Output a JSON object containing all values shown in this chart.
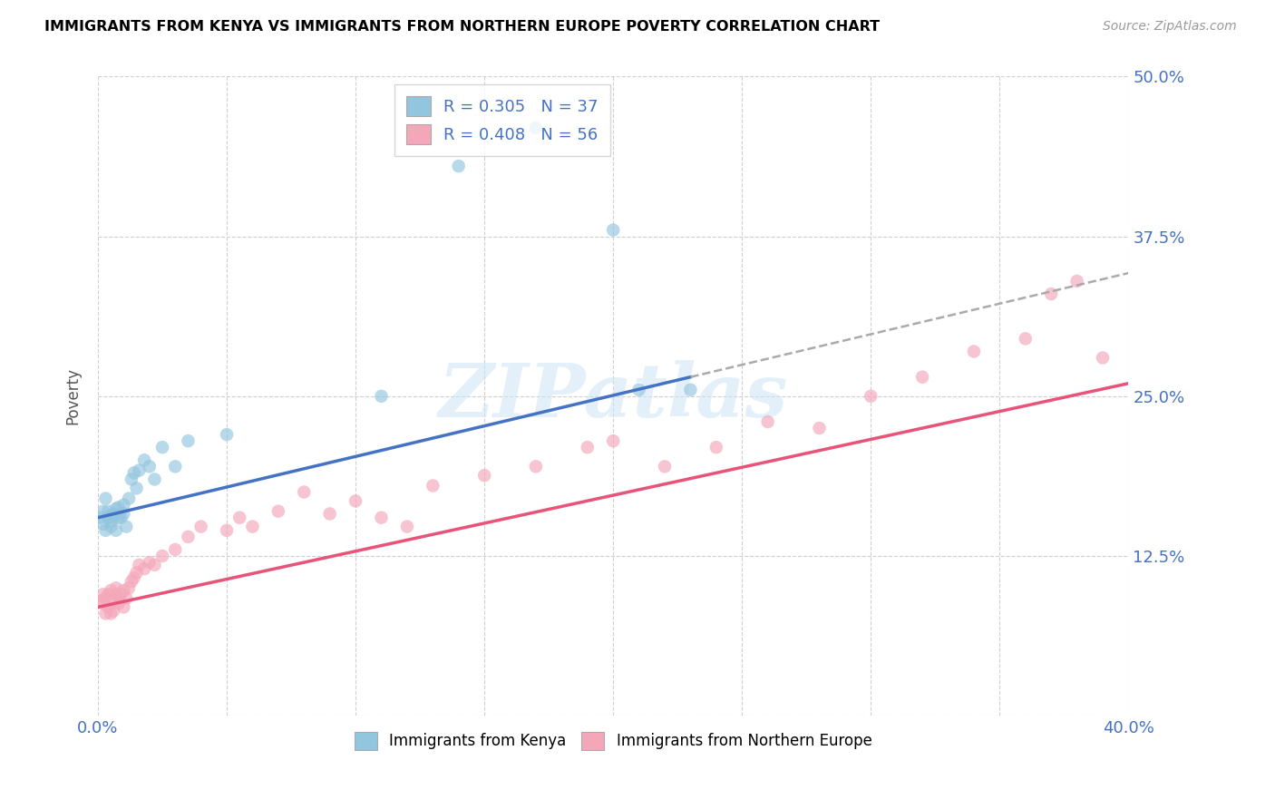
{
  "title": "IMMIGRANTS FROM KENYA VS IMMIGRANTS FROM NORTHERN EUROPE POVERTY CORRELATION CHART",
  "source": "Source: ZipAtlas.com",
  "ylabel": "Poverty",
  "xlim": [
    0.0,
    0.4
  ],
  "ylim": [
    0.0,
    0.5
  ],
  "xtick_positions": [
    0.0,
    0.05,
    0.1,
    0.15,
    0.2,
    0.25,
    0.3,
    0.35,
    0.4
  ],
  "xticklabels": [
    "0.0%",
    "",
    "",
    "",
    "",
    "",
    "",
    "",
    "40.0%"
  ],
  "ytick_positions": [
    0.0,
    0.125,
    0.25,
    0.375,
    0.5
  ],
  "yticklabels": [
    "",
    "12.5%",
    "25.0%",
    "37.5%",
    "50.0%"
  ],
  "watermark": "ZIPatlas",
  "legend_r1": "0.305",
  "legend_n1": "37",
  "legend_r2": "0.408",
  "legend_n2": "56",
  "legend_label1": "Immigrants from Kenya",
  "legend_label2": "Immigrants from Northern Europe",
  "color_kenya": "#92c5de",
  "color_northern": "#f4a7b9",
  "color_trend_kenya": "#4472C4",
  "color_trend_northern": "#e8537a",
  "color_axis_labels": "#4472C4",
  "kenya_x": [
    0.001,
    0.002,
    0.002,
    0.003,
    0.003,
    0.004,
    0.004,
    0.005,
    0.005,
    0.006,
    0.006,
    0.007,
    0.007,
    0.008,
    0.008,
    0.009,
    0.01,
    0.01,
    0.011,
    0.012,
    0.013,
    0.014,
    0.015,
    0.016,
    0.018,
    0.02,
    0.022,
    0.025,
    0.03,
    0.035,
    0.05,
    0.11,
    0.14,
    0.17,
    0.2,
    0.21,
    0.23
  ],
  "kenya_y": [
    0.155,
    0.16,
    0.15,
    0.145,
    0.17,
    0.155,
    0.16,
    0.148,
    0.152,
    0.156,
    0.158,
    0.145,
    0.162,
    0.155,
    0.163,
    0.155,
    0.158,
    0.165,
    0.148,
    0.17,
    0.185,
    0.19,
    0.178,
    0.192,
    0.2,
    0.195,
    0.185,
    0.21,
    0.195,
    0.215,
    0.22,
    0.25,
    0.43,
    0.46,
    0.38,
    0.255,
    0.255
  ],
  "northern_x": [
    0.001,
    0.002,
    0.002,
    0.003,
    0.003,
    0.004,
    0.004,
    0.005,
    0.005,
    0.006,
    0.006,
    0.007,
    0.007,
    0.008,
    0.008,
    0.009,
    0.01,
    0.01,
    0.011,
    0.012,
    0.013,
    0.014,
    0.015,
    0.016,
    0.018,
    0.02,
    0.022,
    0.025,
    0.03,
    0.035,
    0.04,
    0.05,
    0.055,
    0.06,
    0.07,
    0.08,
    0.09,
    0.1,
    0.11,
    0.12,
    0.13,
    0.15,
    0.17,
    0.19,
    0.2,
    0.22,
    0.24,
    0.26,
    0.28,
    0.3,
    0.32,
    0.34,
    0.36,
    0.37,
    0.38,
    0.39
  ],
  "northern_y": [
    0.09,
    0.088,
    0.095,
    0.08,
    0.092,
    0.095,
    0.085,
    0.098,
    0.08,
    0.09,
    0.082,
    0.095,
    0.1,
    0.088,
    0.092,
    0.095,
    0.085,
    0.098,
    0.092,
    0.1,
    0.105,
    0.108,
    0.112,
    0.118,
    0.115,
    0.12,
    0.118,
    0.125,
    0.13,
    0.14,
    0.148,
    0.145,
    0.155,
    0.148,
    0.16,
    0.175,
    0.158,
    0.168,
    0.155,
    0.148,
    0.18,
    0.188,
    0.195,
    0.21,
    0.215,
    0.195,
    0.21,
    0.23,
    0.225,
    0.25,
    0.265,
    0.285,
    0.295,
    0.33,
    0.34,
    0.28
  ],
  "kenya_trend_x_start": 0.0,
  "kenya_trend_x_solid_end": 0.23,
  "kenya_trend_x_dash_end": 0.4,
  "northern_trend_x_start": 0.0,
  "northern_trend_x_end": 0.4
}
